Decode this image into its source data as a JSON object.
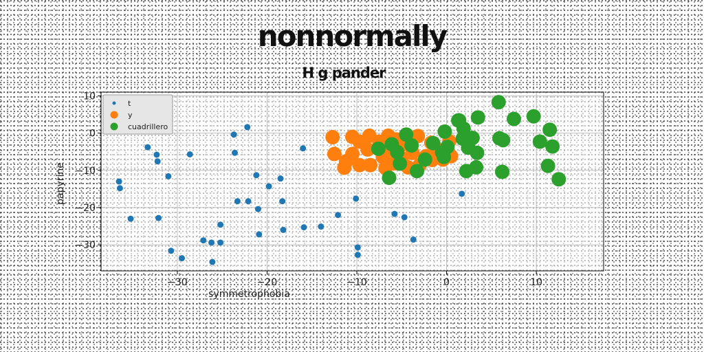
{
  "title": "nonnormally",
  "subtitle": "H g pander",
  "chart_data": {
    "type": "scatter",
    "xlabel": "symmetrophobia",
    "ylabel": "papyrine",
    "xlim": [
      -38.5,
      17.5
    ],
    "ylim": [
      -37,
      11
    ],
    "xticks": [
      -30,
      -20,
      -10,
      0,
      10
    ],
    "yticks": [
      10,
      0,
      -10,
      -20,
      -30
    ],
    "xtick_labels": [
      "−30",
      "−20",
      "−10",
      "0",
      "10"
    ],
    "ytick_labels": [
      "10",
      "0",
      "−10",
      "−20",
      "−30"
    ],
    "grid": true,
    "legend_position": "top-left",
    "series": [
      {
        "name": "t",
        "color": "#1f77b4",
        "marker_size": "small",
        "points": [
          [
            -36.5,
            -13
          ],
          [
            -36.4,
            -14.8
          ],
          [
            -35.2,
            -23
          ],
          [
            -33.3,
            -3.8
          ],
          [
            -32.3,
            -5.8
          ],
          [
            -32.2,
            -7.6
          ],
          [
            -32.1,
            -22.8
          ],
          [
            -31,
            -11.6
          ],
          [
            -30.7,
            -31.6
          ],
          [
            -29.5,
            -33.6
          ],
          [
            -28.6,
            -5.7
          ],
          [
            -27.1,
            -28.8
          ],
          [
            -26.2,
            -29.4
          ],
          [
            -26.1,
            -34.6
          ],
          [
            -25.2,
            -29.4
          ],
          [
            -25.2,
            -24.6
          ],
          [
            -23.7,
            -0.4
          ],
          [
            -23.6,
            -5.3
          ],
          [
            -23.3,
            -18.3
          ],
          [
            -22.2,
            1.6
          ],
          [
            -22.1,
            -18.3
          ],
          [
            -21.2,
            -11.3
          ],
          [
            -21,
            -20.4
          ],
          [
            -20.9,
            -27.2
          ],
          [
            -19.8,
            -14.3
          ],
          [
            -18.5,
            -12.2
          ],
          [
            -18.3,
            -18.3
          ],
          [
            -18.2,
            -26
          ],
          [
            -16,
            -4.1
          ],
          [
            -15.9,
            -25.3
          ],
          [
            -14,
            -25.1
          ],
          [
            -12.1,
            -22
          ],
          [
            -10.1,
            -17.6
          ],
          [
            -9.9,
            -30.7
          ],
          [
            -9.9,
            -32.7
          ],
          [
            -5.8,
            -21.7
          ],
          [
            -4.7,
            -22.6
          ],
          [
            -3.7,
            -28.6
          ],
          [
            -1.5,
            -7.5
          ],
          [
            1.7,
            -16.3
          ]
        ]
      },
      {
        "name": "y",
        "color": "#ff7f0e",
        "marker_size": "large",
        "points": [
          [
            -12.7,
            -1.1
          ],
          [
            -12.5,
            -5.6
          ],
          [
            -11.4,
            -9.3
          ],
          [
            -11.2,
            -7.6
          ],
          [
            -10.5,
            -1
          ],
          [
            -10.5,
            -5.6
          ],
          [
            -9.7,
            -2.3
          ],
          [
            -9.7,
            -8.6
          ],
          [
            -8.8,
            -4.4
          ],
          [
            -8.6,
            -0.7
          ],
          [
            -8.5,
            -8.6
          ],
          [
            -7.5,
            -2.3
          ],
          [
            -7.1,
            -6.4
          ],
          [
            -6.8,
            -9.4
          ],
          [
            -6.5,
            -0.7
          ],
          [
            -6.2,
            -4.5
          ],
          [
            -5.8,
            -8.1
          ],
          [
            -5.6,
            -1.7
          ],
          [
            -5.2,
            -3.5
          ],
          [
            -5,
            -6.8
          ],
          [
            -4.4,
            -2.1
          ],
          [
            -4.3,
            -9.2
          ],
          [
            -3.8,
            -5.3
          ],
          [
            -3.2,
            -0.8
          ],
          [
            -3,
            -8.6
          ],
          [
            -2.3,
            -6.2
          ],
          [
            -1.7,
            -2.6
          ],
          [
            -1.6,
            -7.2
          ],
          [
            -1.1,
            -4.3
          ],
          [
            -0.4,
            -7.1
          ],
          [
            0.3,
            -2.2
          ],
          [
            0.5,
            -6.2
          ]
        ]
      },
      {
        "name": "cuadrillero",
        "color": "#2ca02c",
        "marker_size": "large",
        "points": [
          [
            -7.6,
            -4.2
          ],
          [
            -6.4,
            -12
          ],
          [
            -6.1,
            -3
          ],
          [
            -5.5,
            -5.1
          ],
          [
            -5.2,
            -8.2
          ],
          [
            -4.5,
            -0.4
          ],
          [
            -3.9,
            -3.3
          ],
          [
            -3.3,
            -10.2
          ],
          [
            -2.4,
            -7.1
          ],
          [
            -1.5,
            -2.7
          ],
          [
            -0.5,
            -5.2
          ],
          [
            -0.3,
            -6.4
          ],
          [
            -0.2,
            0.4
          ],
          [
            0.1,
            -3.7
          ],
          [
            1.3,
            3.4
          ],
          [
            1.4,
            3.4
          ],
          [
            1.8,
            -1.5
          ],
          [
            1.9,
            1.2
          ],
          [
            2.2,
            -10.2
          ],
          [
            2.4,
            -3.9
          ],
          [
            2.9,
            -1.3
          ],
          [
            3.3,
            -9.2
          ],
          [
            3.4,
            -5.3
          ],
          [
            3.5,
            4.2
          ],
          [
            5.8,
            8.3
          ],
          [
            5.9,
            -1.4
          ],
          [
            6.2,
            -10.4
          ],
          [
            6.3,
            -1.9
          ],
          [
            7.5,
            3.8
          ],
          [
            9.7,
            4.5
          ],
          [
            10.4,
            -2.3
          ],
          [
            11.3,
            -8.8
          ],
          [
            11.5,
            0.9
          ],
          [
            11.8,
            -3.6
          ],
          [
            12.5,
            -12.4
          ]
        ]
      }
    ]
  }
}
